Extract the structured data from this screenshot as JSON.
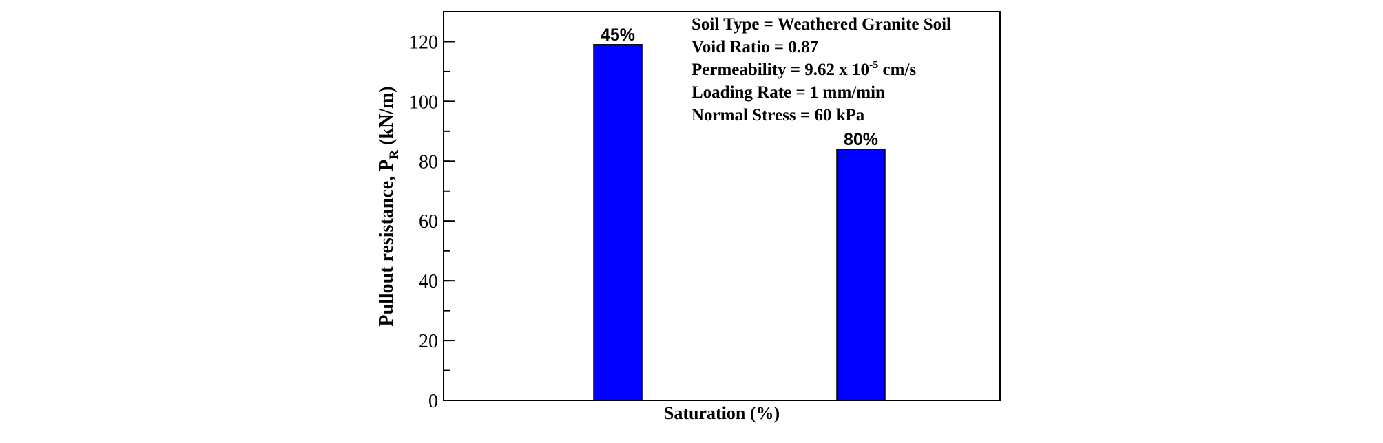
{
  "chart_data": {
    "type": "bar",
    "categories": [
      "45%",
      "80%"
    ],
    "values": [
      119,
      84
    ],
    "data_labels": [
      "45%",
      "80%"
    ],
    "xlabel": "Saturation (%)",
    "ylabel": {
      "main": "Pullout resistance, P",
      "subscript": "R",
      "units": "(kN/m)"
    },
    "ylim": [
      0,
      130
    ],
    "yticks": [
      0,
      20,
      40,
      60,
      80,
      100,
      120
    ],
    "yminor_step": 10,
    "grid": false,
    "bar_color": "#0000ff",
    "annotations": [
      {
        "text": "Soil Type = Weathered Granite Soil"
      },
      {
        "text": "Void Ratio = 0.87"
      },
      {
        "text": "Permeability = 9.62 x 10",
        "superscript": "-5",
        "suffix": " cm/s"
      },
      {
        "text": "Loading Rate = 1 mm/min"
      },
      {
        "text": "Normal Stress = 60 kPa"
      }
    ]
  }
}
